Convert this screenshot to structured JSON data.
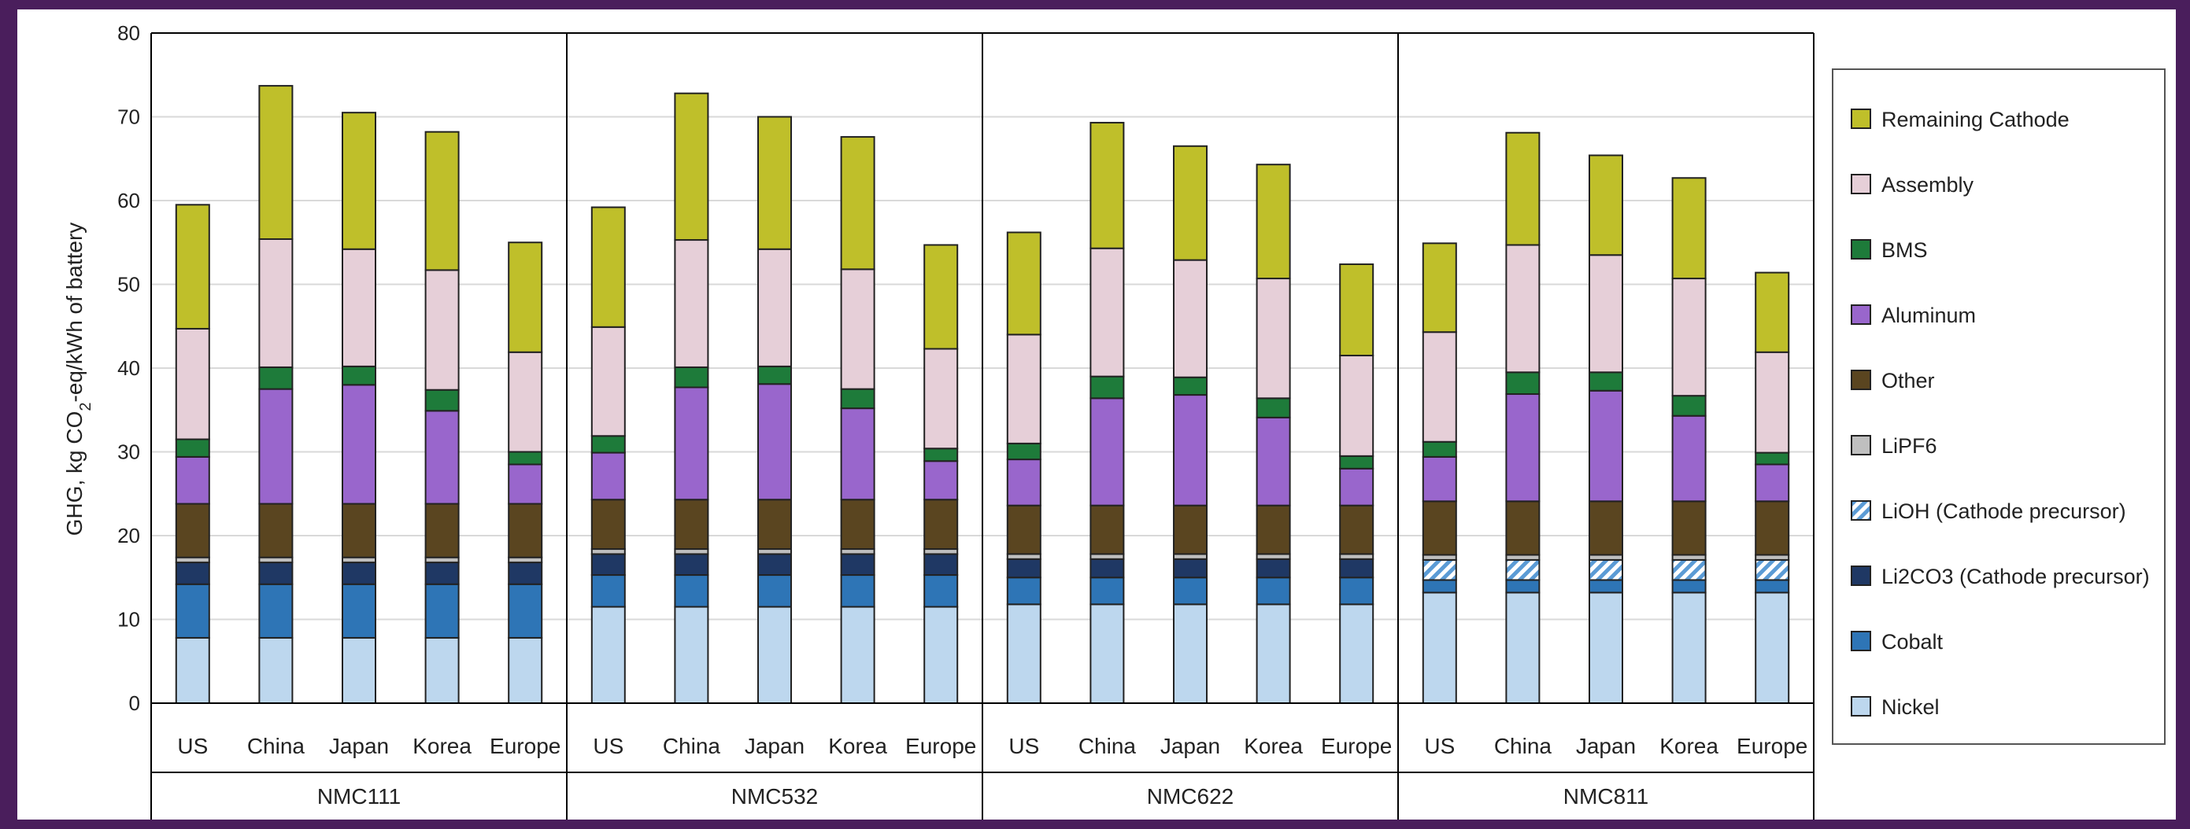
{
  "chart_data": {
    "type": "bar",
    "stacked": true,
    "ylabel_main": "GHG, kg CO",
    "ylabel_sub": "2",
    "ylabel_rest": "-eq/kWh of battery",
    "ylim": [
      0,
      80
    ],
    "yticks": [
      0,
      10,
      20,
      30,
      40,
      50,
      60,
      70,
      80
    ],
    "grid": true,
    "legend_position": "right",
    "groups": [
      {
        "name": "NMC111",
        "categories": [
          "US",
          "China",
          "Japan",
          "Korea",
          "Europe"
        ]
      },
      {
        "name": "NMC532",
        "categories": [
          "US",
          "China",
          "Japan",
          "Korea",
          "Europe"
        ]
      },
      {
        "name": "NMC622",
        "categories": [
          "US",
          "China",
          "Japan",
          "Korea",
          "Europe"
        ]
      },
      {
        "name": "NMC811",
        "categories": [
          "US",
          "China",
          "Japan",
          "Korea",
          "Europe"
        ]
      }
    ],
    "series": [
      {
        "name": "Nickel",
        "color": "#bdd7ee",
        "pattern": "solid",
        "values": [
          7.8,
          7.8,
          7.8,
          7.8,
          7.8,
          11.5,
          11.5,
          11.5,
          11.5,
          11.5,
          11.8,
          11.8,
          11.8,
          11.8,
          11.8,
          13.2,
          13.2,
          13.2,
          13.2,
          13.2
        ]
      },
      {
        "name": "Cobalt",
        "color": "#2e75b6",
        "pattern": "solid",
        "values": [
          6.4,
          6.4,
          6.4,
          6.4,
          6.4,
          3.8,
          3.8,
          3.8,
          3.8,
          3.8,
          3.2,
          3.2,
          3.2,
          3.2,
          3.2,
          1.5,
          1.5,
          1.5,
          1.5,
          1.5
        ]
      },
      {
        "name": "Li2CO3 (Cathode precursor)",
        "color": "#1f3864",
        "pattern": "solid",
        "values": [
          2.6,
          2.6,
          2.6,
          2.6,
          2.6,
          2.5,
          2.5,
          2.5,
          2.5,
          2.5,
          2.2,
          2.2,
          2.2,
          2.2,
          2.2,
          0,
          0,
          0,
          0,
          0
        ]
      },
      {
        "name": "LiOH (Cathode precursor)",
        "color": "#9dc3e6",
        "pattern": "hatch",
        "values": [
          0,
          0,
          0,
          0,
          0,
          0,
          0,
          0,
          0,
          0,
          0,
          0,
          0,
          0,
          0,
          2.4,
          2.4,
          2.4,
          2.4,
          2.4
        ]
      },
      {
        "name": "LiPF6",
        "color": "#bfbfbf",
        "pattern": "solid",
        "values": [
          0.6,
          0.6,
          0.6,
          0.6,
          0.6,
          0.6,
          0.6,
          0.6,
          0.6,
          0.6,
          0.6,
          0.6,
          0.6,
          0.6,
          0.6,
          0.6,
          0.6,
          0.6,
          0.6,
          0.6
        ]
      },
      {
        "name": "Other",
        "color": "#5a4520",
        "pattern": "solid",
        "values": [
          6.4,
          6.4,
          6.4,
          6.4,
          6.4,
          5.9,
          5.9,
          5.9,
          5.9,
          5.9,
          5.8,
          5.8,
          5.8,
          5.8,
          5.8,
          6.4,
          6.4,
          6.4,
          6.4,
          6.4
        ]
      },
      {
        "name": "Aluminum",
        "color": "#9966cc",
        "pattern": "solid",
        "values": [
          5.6,
          13.7,
          14.2,
          11.1,
          4.7,
          5.6,
          13.4,
          13.8,
          10.9,
          4.6,
          5.5,
          12.8,
          13.2,
          10.5,
          4.4,
          5.3,
          12.8,
          13.2,
          10.2,
          4.4
        ]
      },
      {
        "name": "BMS",
        "color": "#1e7b3a",
        "pattern": "solid",
        "values": [
          2.1,
          2.6,
          2.2,
          2.5,
          1.5,
          2.0,
          2.4,
          2.1,
          2.3,
          1.5,
          1.9,
          2.6,
          2.1,
          2.3,
          1.5,
          1.8,
          2.6,
          2.2,
          2.4,
          1.4
        ]
      },
      {
        "name": "Assembly",
        "color": "#e6cfd8",
        "pattern": "solid",
        "values": [
          13.2,
          15.3,
          14.0,
          14.3,
          11.9,
          13.0,
          15.2,
          14.0,
          14.3,
          11.9,
          13.0,
          15.3,
          14.0,
          14.3,
          12.0,
          13.1,
          15.2,
          14.0,
          14.0,
          12.0
        ]
      },
      {
        "name": "Remaining Cathode",
        "color": "#bfbf2a",
        "pattern": "solid",
        "values": [
          14.8,
          18.3,
          16.3,
          16.5,
          13.1,
          14.3,
          17.5,
          15.8,
          15.8,
          12.4,
          12.2,
          15.0,
          13.6,
          13.6,
          10.9,
          10.6,
          13.4,
          11.9,
          12.0,
          9.5
        ]
      }
    ]
  }
}
